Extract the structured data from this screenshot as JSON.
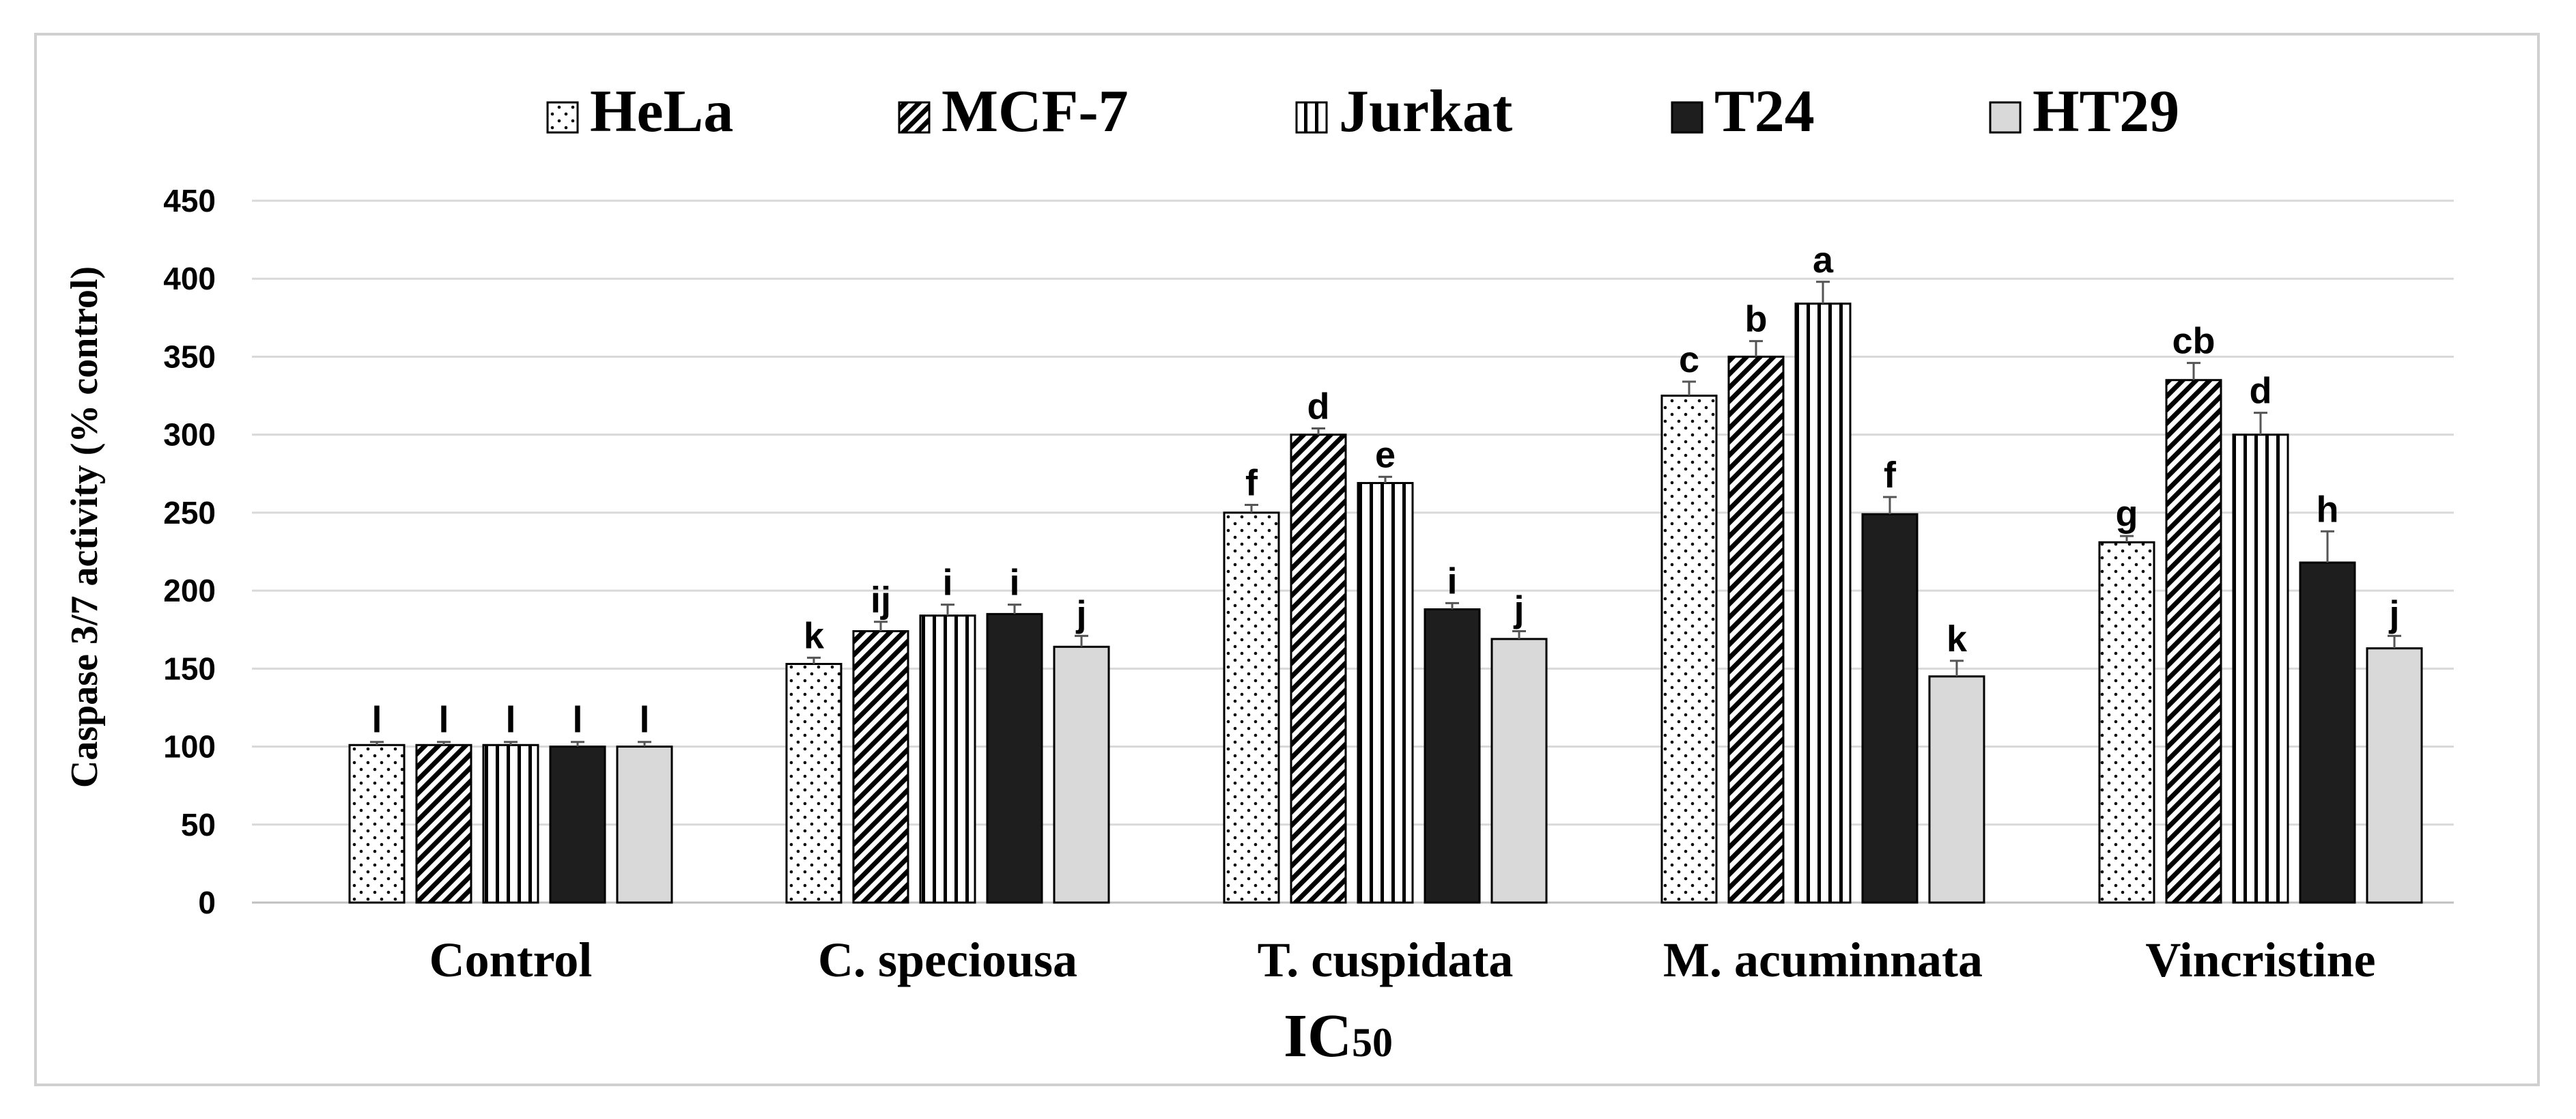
{
  "chart_data": {
    "type": "bar",
    "title": "",
    "xlabel": "IC",
    "xlabel_subscript": "50",
    "ylabel": "Caspase 3/7 activity (% control)",
    "ylim": [
      0,
      450
    ],
    "yticks": [
      "0",
      "50",
      "100",
      "150",
      "200",
      "250",
      "300",
      "350",
      "400",
      "450"
    ],
    "grid": true,
    "legend_position": "top",
    "categories": [
      "Control",
      "C. speciousa",
      "T. cuspidata",
      "M. acuminnata",
      "Vincristine"
    ],
    "series": [
      {
        "name": "HeLa",
        "pattern": "dots",
        "values": [
          101,
          153,
          250,
          325,
          231
        ],
        "errors": [
          2,
          4,
          5,
          9,
          4
        ],
        "labels": [
          "l",
          "k",
          "f",
          "c",
          "g"
        ]
      },
      {
        "name": "MCF-7",
        "pattern": "diagonal",
        "values": [
          101,
          174,
          300,
          350,
          335
        ],
        "errors": [
          2,
          6,
          4,
          10,
          11
        ],
        "labels": [
          "l",
          "ij",
          "d",
          "b",
          "cb"
        ]
      },
      {
        "name": "Jurkat",
        "pattern": "vertical",
        "values": [
          101,
          184,
          269,
          384,
          300
        ],
        "errors": [
          2,
          7,
          4,
          14,
          14
        ],
        "labels": [
          "l",
          "i",
          "e",
          "a",
          "d"
        ]
      },
      {
        "name": "T24",
        "pattern": "solid",
        "values": [
          100,
          185,
          188,
          249,
          218
        ],
        "errors": [
          3,
          6,
          4,
          11,
          20
        ],
        "labels": [
          "l",
          "i",
          "i",
          "f",
          "h"
        ]
      },
      {
        "name": "HT29",
        "pattern": "light",
        "values": [
          100,
          164,
          169,
          145,
          163
        ],
        "errors": [
          3,
          7,
          5,
          10,
          8
        ],
        "labels": [
          "l",
          "j",
          "j",
          "k",
          "j"
        ]
      }
    ]
  },
  "colors": {
    "solid": "#1e1e1e",
    "light": "#d9d9d9",
    "outline": "#000000",
    "grid": "#d9d9d9",
    "text": "#000000",
    "error_bar": "#555555"
  }
}
